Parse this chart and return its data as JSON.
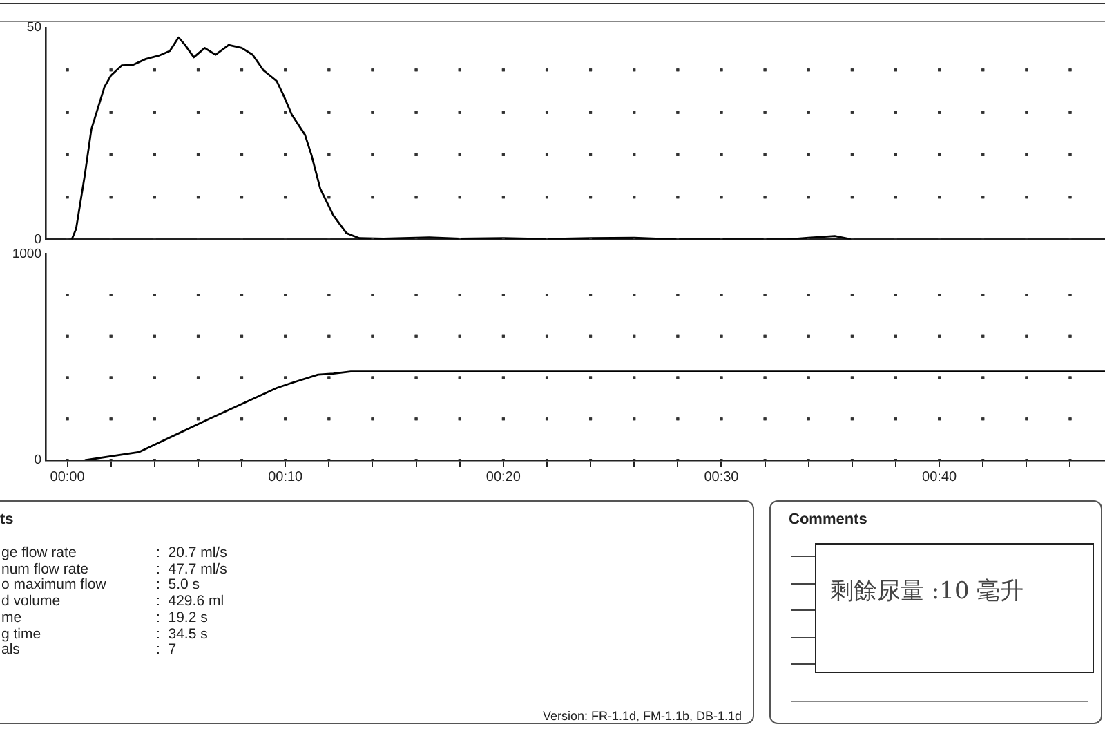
{
  "chart_data": [
    {
      "type": "line",
      "xlim": [
        -1,
        47.6
      ],
      "ylim": [
        0,
        50
      ],
      "xticks": [
        {
          "value": 0,
          "label": null
        },
        {
          "value": 2,
          "label": null
        },
        {
          "value": 4,
          "label": null
        },
        {
          "value": 6,
          "label": null
        },
        {
          "value": 8,
          "label": null
        },
        {
          "value": 10,
          "label": null
        },
        {
          "value": 12,
          "label": null
        },
        {
          "value": 14,
          "label": null
        },
        {
          "value": 16,
          "label": null
        },
        {
          "value": 18,
          "label": null
        },
        {
          "value": 20,
          "label": null
        },
        {
          "value": 22,
          "label": null
        },
        {
          "value": 24,
          "label": null
        },
        {
          "value": 26,
          "label": null
        },
        {
          "value": 28,
          "label": null
        },
        {
          "value": 30,
          "label": null
        },
        {
          "value": 32,
          "label": null
        },
        {
          "value": 34,
          "label": null
        },
        {
          "value": 36,
          "label": null
        },
        {
          "value": 38,
          "label": null
        },
        {
          "value": 40,
          "label": null
        },
        {
          "value": 42,
          "label": null
        },
        {
          "value": 44,
          "label": null
        },
        {
          "value": 46,
          "label": null
        }
      ],
      "yticks": [
        0,
        {
          "value": 10,
          "label": null
        },
        {
          "value": 20,
          "label": null
        },
        {
          "value": 30,
          "label": null
        },
        {
          "value": 40,
          "label": null
        },
        50
      ],
      "tick_labels": "y",
      "grid": true,
      "legend": false,
      "marker": "none",
      "line_style": "solid",
      "series": [
        {
          "color": "#000000",
          "x": [
            0.2,
            0.4,
            0.8,
            1.1,
            1.7,
            2.0,
            2.5,
            3.0,
            3.6,
            4.2,
            4.7,
            5.1,
            5.4,
            5.8,
            6.3,
            6.8,
            7.4,
            8.0,
            8.5,
            9.0,
            9.6,
            9.9,
            10.3,
            10.9,
            11.2,
            11.6,
            12.2,
            12.8,
            13.4,
            14.5,
            16.6,
            18,
            20,
            22,
            24,
            26,
            28,
            33,
            34,
            35.2,
            36
          ],
          "values": [
            0,
            2.5,
            15.2,
            26,
            36,
            38.7,
            41.1,
            41.2,
            42.6,
            43.4,
            44.5,
            47.7,
            45.9,
            43,
            45.2,
            43.6,
            45.9,
            45.2,
            43.6,
            39.9,
            37.4,
            34.2,
            29.4,
            24.7,
            19.9,
            12,
            5.7,
            1.5,
            0.3,
            0.2,
            0.5,
            0.2,
            0.3,
            0.1,
            0.3,
            0.4,
            0,
            0,
            0.4,
            0.8,
            0
          ]
        }
      ]
    },
    {
      "type": "line",
      "xlim": [
        -1,
        47.6
      ],
      "ylim": [
        0,
        1000
      ],
      "xticks": [
        {
          "value": 0,
          "label": "00:00"
        },
        {
          "value": 2,
          "label": null
        },
        {
          "value": 4,
          "label": null
        },
        {
          "value": 6,
          "label": null
        },
        {
          "value": 8,
          "label": null
        },
        {
          "value": 10,
          "label": "00:10"
        },
        {
          "value": 12,
          "label": null
        },
        {
          "value": 14,
          "label": null
        },
        {
          "value": 16,
          "label": null
        },
        {
          "value": 18,
          "label": null
        },
        {
          "value": 20,
          "label": "00:20"
        },
        {
          "value": 22,
          "label": null
        },
        {
          "value": 24,
          "label": null
        },
        {
          "value": 26,
          "label": null
        },
        {
          "value": 28,
          "label": null
        },
        {
          "value": 30,
          "label": "00:30"
        },
        {
          "value": 32,
          "label": null
        },
        {
          "value": 34,
          "label": null
        },
        {
          "value": 36,
          "label": null
        },
        {
          "value": 38,
          "label": null
        },
        {
          "value": 40,
          "label": "00:40"
        },
        {
          "value": 42,
          "label": null
        },
        {
          "value": 44,
          "label": null
        },
        {
          "value": 46,
          "label": null
        }
      ],
      "yticks": [
        0,
        {
          "value": 200,
          "label": null
        },
        {
          "value": 400,
          "label": null
        },
        {
          "value": 600,
          "label": null
        },
        {
          "value": 800,
          "label": null
        },
        1000
      ],
      "grid": true,
      "legend": false,
      "marker": "none",
      "line_style": "solid",
      "series": [
        {
          "color": "#000000",
          "x": [
            0.8,
            3.3,
            6.5,
            9.6,
            10.3,
            11.5,
            12.2,
            13,
            47.6
          ],
          "values": [
            0,
            40,
            200,
            350,
            375,
            415,
            420,
            430,
            430
          ]
        }
      ],
      "annotations": [
        "ts",
        "ge flow rate : 20.7 ml/s",
        "num flow rate : 47.7 ml/s",
        "o maximum flow : 5.0 s",
        "d volume : 429.6 ml",
        "me : 19.2 s",
        "g time : 34.5 s",
        "als : 7",
        "Version: FR-1.1d, FM-1.1b, DB-1.1d",
        "Comments",
        "剩餘尿量 :10 毫升"
      ]
    }
  ]
}
